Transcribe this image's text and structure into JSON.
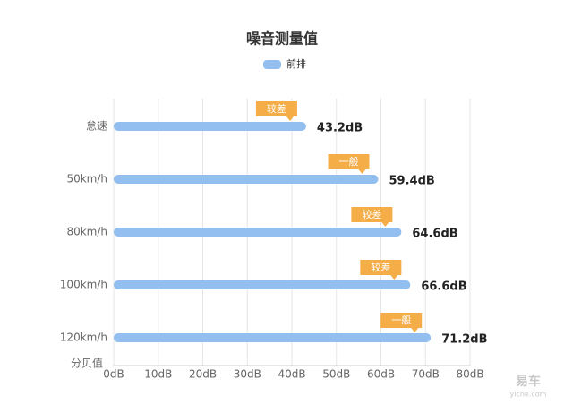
{
  "chart_data": {
    "type": "hbar",
    "title": "噪音测量值",
    "categories": [
      "怠速",
      "50km/h",
      "80km/h",
      "100km/h",
      "120km/h"
    ],
    "series": [
      {
        "name": "前排",
        "color": "#93bff0",
        "values": [
          43.2,
          59.4,
          64.6,
          66.6,
          71.2
        ],
        "value_labels": [
          "43.2dB",
          "59.4dB",
          "64.6dB",
          "66.6dB",
          "71.2dB"
        ],
        "ratings": [
          "较差",
          "一般",
          "较差",
          "较差",
          "一般"
        ],
        "rating_color": "#f4ad47"
      }
    ],
    "y_label": "分贝值",
    "xlim": [
      0,
      80
    ],
    "xticks": [
      {
        "value": 0,
        "label": "0dB"
      },
      {
        "value": 10,
        "label": "10dB"
      },
      {
        "value": 20,
        "label": "20dB"
      },
      {
        "value": 30,
        "label": "30dB"
      },
      {
        "value": 40,
        "label": "40dB"
      },
      {
        "value": 50,
        "label": "50dB"
      },
      {
        "value": 60,
        "label": "60dB"
      },
      {
        "value": 70,
        "label": "70dB"
      },
      {
        "value": 80,
        "label": "80dB"
      }
    ],
    "grid": true,
    "legend": "top",
    "watermark": {
      "brand": "易车",
      "site": "yiche.com"
    }
  }
}
